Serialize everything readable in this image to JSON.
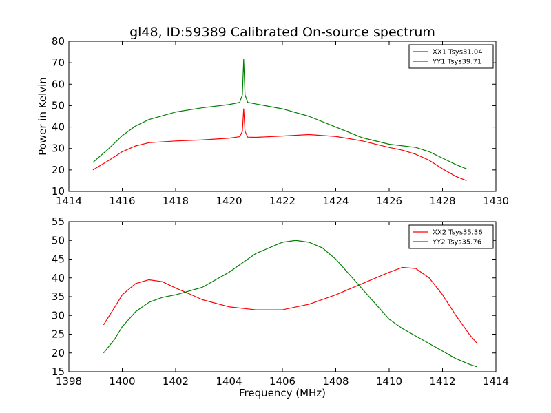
{
  "figure": {
    "title": "gl48, ID:59389 Calibrated On-source spectrum"
  },
  "chart_data": [
    {
      "type": "line",
      "title": "gl48, ID:59389 Calibrated On-source spectrum",
      "xlabel": "",
      "ylabel": "Power in Kelvin",
      "xlim": [
        1414,
        1430
      ],
      "ylim": [
        10,
        80
      ],
      "xticks": [
        "1414",
        "1416",
        "1418",
        "1420",
        "1422",
        "1424",
        "1426",
        "1428",
        "1430"
      ],
      "yticks": [
        "10",
        "20",
        "30",
        "40",
        "50",
        "60",
        "70",
        "80"
      ],
      "grid": false,
      "legend_position": "top-right",
      "series": [
        {
          "name": "XX1 Tsys31.04",
          "color": "#ff0000",
          "x": [
            1414.9,
            1415.5,
            1416,
            1416.5,
            1417,
            1418,
            1419,
            1420,
            1420.4,
            1420.5,
            1420.55,
            1420.6,
            1420.7,
            1421,
            1422,
            1423,
            1424,
            1424.5,
            1425,
            1426,
            1426.5,
            1427,
            1427.5,
            1428,
            1428.5,
            1428.9
          ],
          "y": [
            20,
            24.5,
            28.5,
            31.2,
            32.7,
            33.5,
            34,
            34.8,
            35.5,
            38,
            48.5,
            38,
            35.3,
            35.2,
            35.8,
            36.5,
            35.6,
            34.6,
            33.5,
            30.5,
            29.2,
            27.3,
            24.5,
            20.5,
            17,
            15
          ]
        },
        {
          "name": "YY1 Tsys39.71",
          "color": "#008000",
          "x": [
            1414.9,
            1415.5,
            1416,
            1416.5,
            1417,
            1418,
            1419,
            1420,
            1420.4,
            1420.5,
            1420.55,
            1420.6,
            1420.7,
            1421,
            1422,
            1423,
            1424,
            1425,
            1426,
            1427,
            1427.5,
            1428,
            1428.5,
            1428.9
          ],
          "y": [
            23.5,
            30,
            36,
            40.5,
            43.5,
            47,
            49,
            50.5,
            51.5,
            55,
            71.5,
            55,
            51.5,
            50.8,
            48.5,
            45,
            40,
            35,
            32,
            30.5,
            28.5,
            25.5,
            22.5,
            20.5
          ]
        }
      ]
    },
    {
      "type": "line",
      "title": "",
      "xlabel": "Frequency (MHz)",
      "ylabel": "",
      "xlim": [
        1398,
        1414
      ],
      "ylim": [
        15,
        55
      ],
      "xticks": [
        "1398",
        "1400",
        "1402",
        "1404",
        "1406",
        "1408",
        "1410",
        "1412",
        "1414"
      ],
      "yticks": [
        "15",
        "20",
        "25",
        "30",
        "35",
        "40",
        "45",
        "50",
        "55"
      ],
      "grid": false,
      "legend_position": "top-right",
      "series": [
        {
          "name": "XX2 Tsys35.36",
          "color": "#ff0000",
          "x": [
            1399.3,
            1399.7,
            1400,
            1400.5,
            1401,
            1401.5,
            1402,
            1402.5,
            1403,
            1404,
            1405,
            1406,
            1407,
            1408,
            1409,
            1410,
            1410.5,
            1411,
            1411.5,
            1412,
            1412.5,
            1413,
            1413.3
          ],
          "y": [
            27.5,
            32,
            35.5,
            38.5,
            39.5,
            39,
            37.3,
            35.8,
            34.2,
            32.3,
            31.5,
            31.5,
            33,
            35.5,
            38.5,
            41.5,
            42.8,
            42.5,
            40,
            35.5,
            30,
            25,
            22.5
          ]
        },
        {
          "name": "YY2 Tsys35.76",
          "color": "#008000",
          "x": [
            1399.3,
            1399.7,
            1400,
            1400.5,
            1401,
            1401.5,
            1402,
            1403,
            1404,
            1405,
            1406,
            1406.5,
            1407,
            1407.5,
            1408,
            1408.5,
            1409,
            1409.5,
            1410,
            1410.5,
            1411,
            1411.5,
            1412,
            1412.5,
            1413,
            1413.3
          ],
          "y": [
            20,
            23.5,
            27,
            31,
            33.5,
            34.8,
            35.5,
            37.5,
            41.5,
            46.5,
            49.5,
            50,
            49.5,
            48,
            45,
            41,
            37,
            33,
            29,
            26.5,
            24.5,
            22.5,
            20.5,
            18.5,
            17,
            16.3
          ]
        }
      ]
    }
  ]
}
